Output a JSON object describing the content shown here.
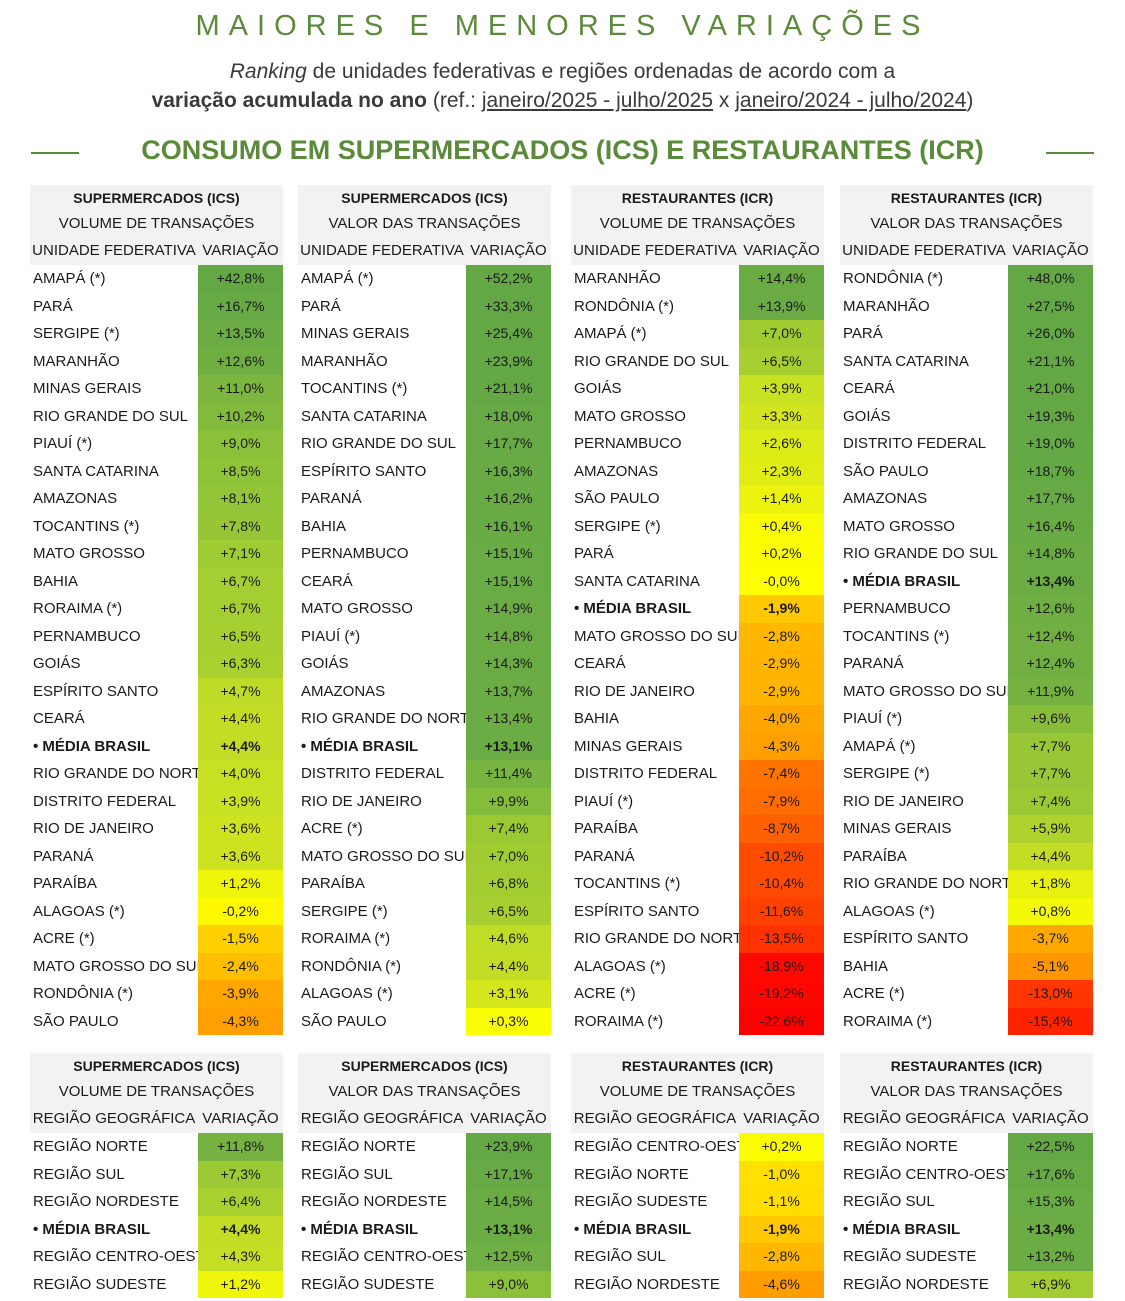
{
  "title": "MAIORES E MENORES VARIAÇÕES",
  "subtitle": {
    "line1_italic": "Ranking",
    "line1_rest": " de unidades federativas e regiões ordenadas de acordo com a",
    "line2_bold": "variação acumulada no ano",
    "line2_ref_open": " (ref.: ",
    "line2_period_a": "janeiro/2025 - julho/2025",
    "line2_x": " x ",
    "line2_period_b": "janeiro/2024 - julho/2024",
    "line2_close": ")"
  },
  "section_title": "CONSUMO EM SUPERMERCADOS (ICS) E RESTAURANTES (ICR)",
  "colors": {
    "accent": "#5b8a3a",
    "header_bg": "#f2f2f2",
    "scale": [
      "#ff0000",
      "#ff6600",
      "#ffc000",
      "#ffff00",
      "#a9d12e",
      "#63a845"
    ]
  },
  "uf_panels": [
    {
      "title": "SUPERMERCADOS (ICS)",
      "subtitle": "VOLUME DE TRANSAÇÕES",
      "col1": "UNIDADE FEDERATIVA",
      "col2": "VARIAÇÃO",
      "rows": [
        {
          "name": "AMAPÁ (*)",
          "value": "+42,8%",
          "v": 42.8
        },
        {
          "name": "PARÁ",
          "value": "+16,7%",
          "v": 16.7
        },
        {
          "name": "SERGIPE (*)",
          "value": "+13,5%",
          "v": 13.5
        },
        {
          "name": "MARANHÃO",
          "value": "+12,6%",
          "v": 12.6
        },
        {
          "name": "MINAS GERAIS",
          "value": "+11,0%",
          "v": 11.0
        },
        {
          "name": "RIO GRANDE DO SUL",
          "value": "+10,2%",
          "v": 10.2
        },
        {
          "name": "PIAUÍ (*)",
          "value": "+9,0%",
          "v": 9.0
        },
        {
          "name": "SANTA CATARINA",
          "value": "+8,5%",
          "v": 8.5
        },
        {
          "name": "AMAZONAS",
          "value": "+8,1%",
          "v": 8.1
        },
        {
          "name": "TOCANTINS (*)",
          "value": "+7,8%",
          "v": 7.8
        },
        {
          "name": "MATO GROSSO",
          "value": "+7,1%",
          "v": 7.1
        },
        {
          "name": "BAHIA",
          "value": "+6,7%",
          "v": 6.7
        },
        {
          "name": "RORAIMA (*)",
          "value": "+6,7%",
          "v": 6.7
        },
        {
          "name": "PERNAMBUCO",
          "value": "+6,5%",
          "v": 6.5
        },
        {
          "name": "GOIÁS",
          "value": "+6,3%",
          "v": 6.3
        },
        {
          "name": "ESPÍRITO SANTO",
          "value": "+4,7%",
          "v": 4.7
        },
        {
          "name": "CEARÁ",
          "value": "+4,4%",
          "v": 4.4
        },
        {
          "name": "• MÉDIA BRASIL",
          "value": "+4,4%",
          "v": 4.4,
          "highlight": true
        },
        {
          "name": "RIO GRANDE DO NORTE",
          "value": "+4,0%",
          "v": 4.0
        },
        {
          "name": "DISTRITO FEDERAL",
          "value": "+3,9%",
          "v": 3.9
        },
        {
          "name": "RIO DE JANEIRO",
          "value": "+3,6%",
          "v": 3.6
        },
        {
          "name": "PARANÁ",
          "value": "+3,6%",
          "v": 3.6
        },
        {
          "name": "PARAÍBA",
          "value": "+1,2%",
          "v": 1.2
        },
        {
          "name": "ALAGOAS (*)",
          "value": "-0,2%",
          "v": -0.2
        },
        {
          "name": "ACRE (*)",
          "value": "-1,5%",
          "v": -1.5
        },
        {
          "name": "MATO GROSSO DO SUL",
          "value": "-2,4%",
          "v": -2.4
        },
        {
          "name": "RONDÔNIA (*)",
          "value": "-3,9%",
          "v": -3.9
        },
        {
          "name": "SÃO PAULO",
          "value": "-4,3%",
          "v": -4.3
        }
      ]
    },
    {
      "title": "SUPERMERCADOS (ICS)",
      "subtitle": "VALOR DAS TRANSAÇÕES",
      "col1": "UNIDADE FEDERATIVA",
      "col2": "VARIAÇÃO",
      "rows": [
        {
          "name": "AMAPÁ (*)",
          "value": "+52,2%",
          "v": 52.2
        },
        {
          "name": "PARÁ",
          "value": "+33,3%",
          "v": 33.3
        },
        {
          "name": "MINAS GERAIS",
          "value": "+25,4%",
          "v": 25.4
        },
        {
          "name": "MARANHÃO",
          "value": "+23,9%",
          "v": 23.9
        },
        {
          "name": "TOCANTINS (*)",
          "value": "+21,1%",
          "v": 21.1
        },
        {
          "name": "SANTA CATARINA",
          "value": "+18,0%",
          "v": 18.0
        },
        {
          "name": "RIO GRANDE DO SUL",
          "value": "+17,7%",
          "v": 17.7
        },
        {
          "name": "ESPÍRITO SANTO",
          "value": "+16,3%",
          "v": 16.3
        },
        {
          "name": "PARANÁ",
          "value": "+16,2%",
          "v": 16.2
        },
        {
          "name": "BAHIA",
          "value": "+16,1%",
          "v": 16.1
        },
        {
          "name": "PERNAMBUCO",
          "value": "+15,1%",
          "v": 15.1
        },
        {
          "name": "CEARÁ",
          "value": "+15,1%",
          "v": 15.1
        },
        {
          "name": "MATO GROSSO",
          "value": "+14,9%",
          "v": 14.9
        },
        {
          "name": "PIAUÍ (*)",
          "value": "+14,8%",
          "v": 14.8
        },
        {
          "name": "GOIÁS",
          "value": "+14,3%",
          "v": 14.3
        },
        {
          "name": "AMAZONAS",
          "value": "+13,7%",
          "v": 13.7
        },
        {
          "name": "RIO GRANDE DO NORTE",
          "value": "+13,4%",
          "v": 13.4
        },
        {
          "name": "• MÉDIA BRASIL",
          "value": "+13,1%",
          "v": 13.1,
          "highlight": true
        },
        {
          "name": "DISTRITO FEDERAL",
          "value": "+11,4%",
          "v": 11.4
        },
        {
          "name": "RIO DE JANEIRO",
          "value": "+9,9%",
          "v": 9.9
        },
        {
          "name": "ACRE (*)",
          "value": "+7,4%",
          "v": 7.4
        },
        {
          "name": "MATO GROSSO DO SUL",
          "value": "+7,0%",
          "v": 7.0
        },
        {
          "name": "PARAÍBA",
          "value": "+6,8%",
          "v": 6.8
        },
        {
          "name": "SERGIPE (*)",
          "value": "+6,5%",
          "v": 6.5
        },
        {
          "name": "RORAIMA (*)",
          "value": "+4,6%",
          "v": 4.6
        },
        {
          "name": "RONDÔNIA (*)",
          "value": "+4,4%",
          "v": 4.4
        },
        {
          "name": "ALAGOAS (*)",
          "value": "+3,1%",
          "v": 3.1
        },
        {
          "name": "SÃO PAULO",
          "value": "+0,3%",
          "v": 0.3
        }
      ]
    },
    {
      "title": "RESTAURANTES (ICR)",
      "subtitle": "VOLUME DE TRANSAÇÕES",
      "col1": "UNIDADE FEDERATIVA",
      "col2": "VARIAÇÃO",
      "rows": [
        {
          "name": "MARANHÃO",
          "value": "+14,4%",
          "v": 14.4
        },
        {
          "name": "RONDÔNIA (*)",
          "value": "+13,9%",
          "v": 13.9
        },
        {
          "name": "AMAPÁ (*)",
          "value": "+7,0%",
          "v": 7.0
        },
        {
          "name": "RIO GRANDE DO SUL",
          "value": "+6,5%",
          "v": 6.5
        },
        {
          "name": "GOIÁS",
          "value": "+3,9%",
          "v": 3.9
        },
        {
          "name": "MATO GROSSO",
          "value": "+3,3%",
          "v": 3.3
        },
        {
          "name": "PERNAMBUCO",
          "value": "+2,6%",
          "v": 2.6
        },
        {
          "name": "AMAZONAS",
          "value": "+2,3%",
          "v": 2.3
        },
        {
          "name": "SÃO PAULO",
          "value": "+1,4%",
          "v": 1.4
        },
        {
          "name": "SERGIPE (*)",
          "value": "+0,4%",
          "v": 0.4
        },
        {
          "name": "PARÁ",
          "value": "+0,2%",
          "v": 0.2
        },
        {
          "name": "SANTA CATARINA",
          "value": "-0,0%",
          "v": 0.0
        },
        {
          "name": "• MÉDIA BRASIL",
          "value": "-1,9%",
          "v": -1.9,
          "highlight": true
        },
        {
          "name": "MATO GROSSO DO SUL",
          "value": "-2,8%",
          "v": -2.8
        },
        {
          "name": "CEARÁ",
          "value": "-2,9%",
          "v": -2.9
        },
        {
          "name": "RIO DE JANEIRO",
          "value": "-2,9%",
          "v": -2.9
        },
        {
          "name": "BAHIA",
          "value": "-4,0%",
          "v": -4.0
        },
        {
          "name": "MINAS GERAIS",
          "value": "-4,3%",
          "v": -4.3
        },
        {
          "name": "DISTRITO FEDERAL",
          "value": "-7,4%",
          "v": -7.4
        },
        {
          "name": "PIAUÍ (*)",
          "value": "-7,9%",
          "v": -7.9
        },
        {
          "name": "PARAÍBA",
          "value": "-8,7%",
          "v": -8.7
        },
        {
          "name": "PARANÁ",
          "value": "-10,2%",
          "v": -10.2
        },
        {
          "name": "TOCANTINS (*)",
          "value": "-10,4%",
          "v": -10.4
        },
        {
          "name": "ESPÍRITO SANTO",
          "value": "-11,6%",
          "v": -11.6
        },
        {
          "name": "RIO GRANDE DO NORTE",
          "value": "-13,5%",
          "v": -13.5
        },
        {
          "name": "ALAGOAS (*)",
          "value": "-18,9%",
          "v": -18.9
        },
        {
          "name": "ACRE (*)",
          "value": "-19,2%",
          "v": -19.2
        },
        {
          "name": "RORAIMA (*)",
          "value": "-22,6%",
          "v": -22.6
        }
      ]
    },
    {
      "title": "RESTAURANTES (ICR)",
      "subtitle": "VALOR DAS TRANSAÇÕES",
      "col1": "UNIDADE FEDERATIVA",
      "col2": "VARIAÇÃO",
      "rows": [
        {
          "name": "RONDÔNIA (*)",
          "value": "+48,0%",
          "v": 48.0
        },
        {
          "name": "MARANHÃO",
          "value": "+27,5%",
          "v": 27.5
        },
        {
          "name": "PARÁ",
          "value": "+26,0%",
          "v": 26.0
        },
        {
          "name": "SANTA CATARINA",
          "value": "+21,1%",
          "v": 21.1
        },
        {
          "name": "CEARÁ",
          "value": "+21,0%",
          "v": 21.0
        },
        {
          "name": "GOIÁS",
          "value": "+19,3%",
          "v": 19.3
        },
        {
          "name": "DISTRITO FEDERAL",
          "value": "+19,0%",
          "v": 19.0
        },
        {
          "name": "SÃO PAULO",
          "value": "+18,7%",
          "v": 18.7
        },
        {
          "name": "AMAZONAS",
          "value": "+17,7%",
          "v": 17.7
        },
        {
          "name": "MATO GROSSO",
          "value": "+16,4%",
          "v": 16.4
        },
        {
          "name": "RIO GRANDE DO SUL",
          "value": "+14,8%",
          "v": 14.8
        },
        {
          "name": "• MÉDIA BRASIL",
          "value": "+13,4%",
          "v": 13.4,
          "highlight": true
        },
        {
          "name": "PERNAMBUCO",
          "value": "+12,6%",
          "v": 12.6
        },
        {
          "name": "TOCANTINS (*)",
          "value": "+12,4%",
          "v": 12.4
        },
        {
          "name": "PARANÁ",
          "value": "+12,4%",
          "v": 12.4
        },
        {
          "name": "MATO GROSSO DO SUL",
          "value": "+11,9%",
          "v": 11.9
        },
        {
          "name": "PIAUÍ (*)",
          "value": "+9,6%",
          "v": 9.6
        },
        {
          "name": "AMAPÁ (*)",
          "value": "+7,7%",
          "v": 7.7
        },
        {
          "name": "SERGIPE (*)",
          "value": "+7,7%",
          "v": 7.7
        },
        {
          "name": "RIO DE JANEIRO",
          "value": "+7,4%",
          "v": 7.4
        },
        {
          "name": "MINAS GERAIS",
          "value": "+5,9%",
          "v": 5.9
        },
        {
          "name": "PARAÍBA",
          "value": "+4,4%",
          "v": 4.4
        },
        {
          "name": "RIO GRANDE DO NORTE",
          "value": "+1,8%",
          "v": 1.8
        },
        {
          "name": "ALAGOAS (*)",
          "value": "+0,8%",
          "v": 0.8
        },
        {
          "name": "ESPÍRITO SANTO",
          "value": "-3,7%",
          "v": -3.7
        },
        {
          "name": "BAHIA",
          "value": "-5,1%",
          "v": -5.1
        },
        {
          "name": "ACRE (*)",
          "value": "-13,0%",
          "v": -13.0
        },
        {
          "name": "RORAIMA (*)",
          "value": "-15,4%",
          "v": -15.4
        }
      ]
    }
  ],
  "region_panels": [
    {
      "title": "SUPERMERCADOS (ICS)",
      "subtitle": "VOLUME DE TRANSAÇÕES",
      "col1": "REGIÃO GEOGRÁFICA",
      "col2": "VARIAÇÃO",
      "rows": [
        {
          "name": "REGIÃO NORTE",
          "value": "+11,8%",
          "v": 11.8
        },
        {
          "name": "REGIÃO SUL",
          "value": "+7,3%",
          "v": 7.3
        },
        {
          "name": "REGIÃO NORDESTE",
          "value": "+6,4%",
          "v": 6.4
        },
        {
          "name": "• MÉDIA BRASIL",
          "value": "+4,4%",
          "v": 4.4,
          "highlight": true
        },
        {
          "name": "REGIÃO CENTRO-OESTE",
          "value": "+4,3%",
          "v": 4.3
        },
        {
          "name": "REGIÃO SUDESTE",
          "value": "+1,2%",
          "v": 1.2
        }
      ]
    },
    {
      "title": "SUPERMERCADOS (ICS)",
      "subtitle": "VALOR DAS TRANSAÇÕES",
      "col1": "REGIÃO GEOGRÁFICA",
      "col2": "VARIAÇÃO",
      "rows": [
        {
          "name": "REGIÃO NORTE",
          "value": "+23,9%",
          "v": 23.9
        },
        {
          "name": "REGIÃO SUL",
          "value": "+17,1%",
          "v": 17.1
        },
        {
          "name": "REGIÃO NORDESTE",
          "value": "+14,5%",
          "v": 14.5
        },
        {
          "name": "• MÉDIA BRASIL",
          "value": "+13,1%",
          "v": 13.1,
          "highlight": true
        },
        {
          "name": "REGIÃO CENTRO-OESTE",
          "value": "+12,5%",
          "v": 12.5
        },
        {
          "name": "REGIÃO SUDESTE",
          "value": "+9,0%",
          "v": 9.0
        }
      ]
    },
    {
      "title": "RESTAURANTES (ICR)",
      "subtitle": "VOLUME DE TRANSAÇÕES",
      "col1": "REGIÃO GEOGRÁFICA",
      "col2": "VARIAÇÃO",
      "rows": [
        {
          "name": "REGIÃO CENTRO-OESTE",
          "value": "+0,2%",
          "v": 0.2
        },
        {
          "name": "REGIÃO NORTE",
          "value": "-1,0%",
          "v": -1.0
        },
        {
          "name": "REGIÃO SUDESTE",
          "value": "-1,1%",
          "v": -1.1
        },
        {
          "name": "• MÉDIA BRASIL",
          "value": "-1,9%",
          "v": -1.9,
          "highlight": true
        },
        {
          "name": "REGIÃO SUL",
          "value": "-2,8%",
          "v": -2.8
        },
        {
          "name": "REGIÃO NORDESTE",
          "value": "-4,6%",
          "v": -4.6
        }
      ]
    },
    {
      "title": "RESTAURANTES (ICR)",
      "subtitle": "VALOR DAS TRANSAÇÕES",
      "col1": "REGIÃO GEOGRÁFICA",
      "col2": "VARIAÇÃO",
      "rows": [
        {
          "name": "REGIÃO NORTE",
          "value": "+22,5%",
          "v": 22.5
        },
        {
          "name": "REGIÃO CENTRO-OESTE",
          "value": "+17,6%",
          "v": 17.6
        },
        {
          "name": "REGIÃO SUL",
          "value": "+15,3%",
          "v": 15.3
        },
        {
          "name": "• MÉDIA BRASIL",
          "value": "+13,4%",
          "v": 13.4,
          "highlight": true
        },
        {
          "name": "REGIÃO SUDESTE",
          "value": "+13,2%",
          "v": 13.2
        },
        {
          "name": "REGIÃO NORDESTE",
          "value": "+6,9%",
          "v": 6.9
        }
      ]
    }
  ]
}
